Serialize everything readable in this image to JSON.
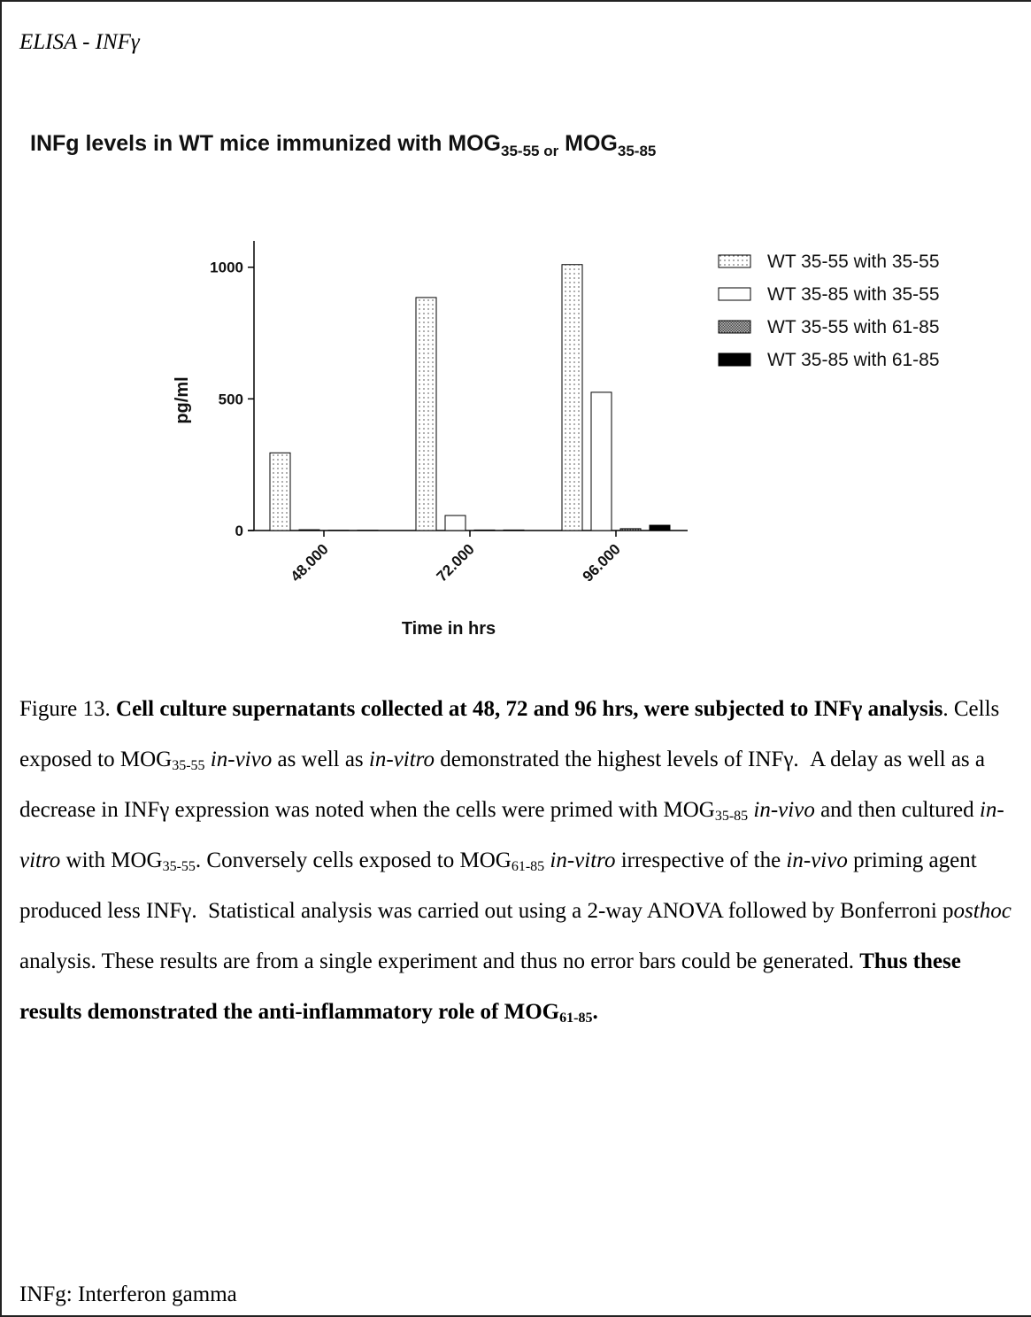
{
  "header": {
    "title": "ELISA - INFγ"
  },
  "chart_data": {
    "type": "bar",
    "title_parts": [
      {
        "text": "INFg levels in WT mice immunized with MOG",
        "sub": false
      },
      {
        "text": "35-55 or",
        "sub": true
      },
      {
        "text": " MOG",
        "sub": false
      },
      {
        "text": "35-85",
        "sub": true
      }
    ],
    "x_label": "Time in hrs",
    "y_label": "pg/ml",
    "categories": [
      "48.000",
      "72.000",
      "96.000"
    ],
    "series": [
      {
        "name": "WT 35-55 with 35-55",
        "fill": "dotted",
        "values": [
          295,
          885,
          1010
        ]
      },
      {
        "name": "WT 35-85 with 35-55",
        "fill": "white",
        "values": [
          3,
          57,
          525
        ]
      },
      {
        "name": "WT 35-55 with 61-85",
        "fill": "crosshatch",
        "values": [
          1,
          2,
          7
        ]
      },
      {
        "name": "WT 35-85 with 61-85",
        "fill": "black",
        "values": [
          1,
          2,
          20
        ]
      }
    ],
    "ylim": [
      0,
      1100
    ],
    "yticks": [
      0,
      500,
      1000
    ],
    "legend": "right"
  },
  "caption": {
    "runs": [
      {
        "text": "Figure 13. ",
        "style": "n"
      },
      {
        "text": "Cell culture supernatants collected at 48, 72 and 96 hrs, were subjected to INFγ analysis",
        "style": "b"
      },
      {
        "text": ". Cells exposed to MOG",
        "style": "n"
      },
      {
        "text": "35-55",
        "style": "sub"
      },
      {
        "text": " in-vivo",
        "style": "i"
      },
      {
        "text": " as well as ",
        "style": "n"
      },
      {
        "text": "in-vitro",
        "style": "i"
      },
      {
        "text": " demonstrated the highest levels of INFγ.  A delay as well as a decrease in INFγ expression was noted when the cells were primed with MOG",
        "style": "n"
      },
      {
        "text": "35-85",
        "style": "sub"
      },
      {
        "text": " in-vivo",
        "style": "i"
      },
      {
        "text": " and then cultured ",
        "style": "n"
      },
      {
        "text": "in-vitro",
        "style": "i"
      },
      {
        "text": " with MOG",
        "style": "n"
      },
      {
        "text": "35-55",
        "style": "sub"
      },
      {
        "text": ". Conversely cells exposed to MOG",
        "style": "n"
      },
      {
        "text": "61-85",
        "style": "sub"
      },
      {
        "text": " in-vitro",
        "style": "i"
      },
      {
        "text": " irrespective of the ",
        "style": "n"
      },
      {
        "text": "in-vivo",
        "style": "i"
      },
      {
        "text": " priming agent produced less INFγ.  Statistical analysis was carried out using a 2-way ANOVA followed by Bonferroni p",
        "style": "n"
      },
      {
        "text": "osthoc",
        "style": "i"
      },
      {
        "text": " analysis. These results are from a single experiment and thus no error bars could be generated. ",
        "style": "n"
      },
      {
        "text": "Thus these results demonstrated the anti-inflammatory role of MOG",
        "style": "b"
      },
      {
        "text": "61-85",
        "style": "bsub"
      },
      {
        "text": ".",
        "style": "b"
      }
    ]
  },
  "footnote": "INFg: Interferon gamma"
}
